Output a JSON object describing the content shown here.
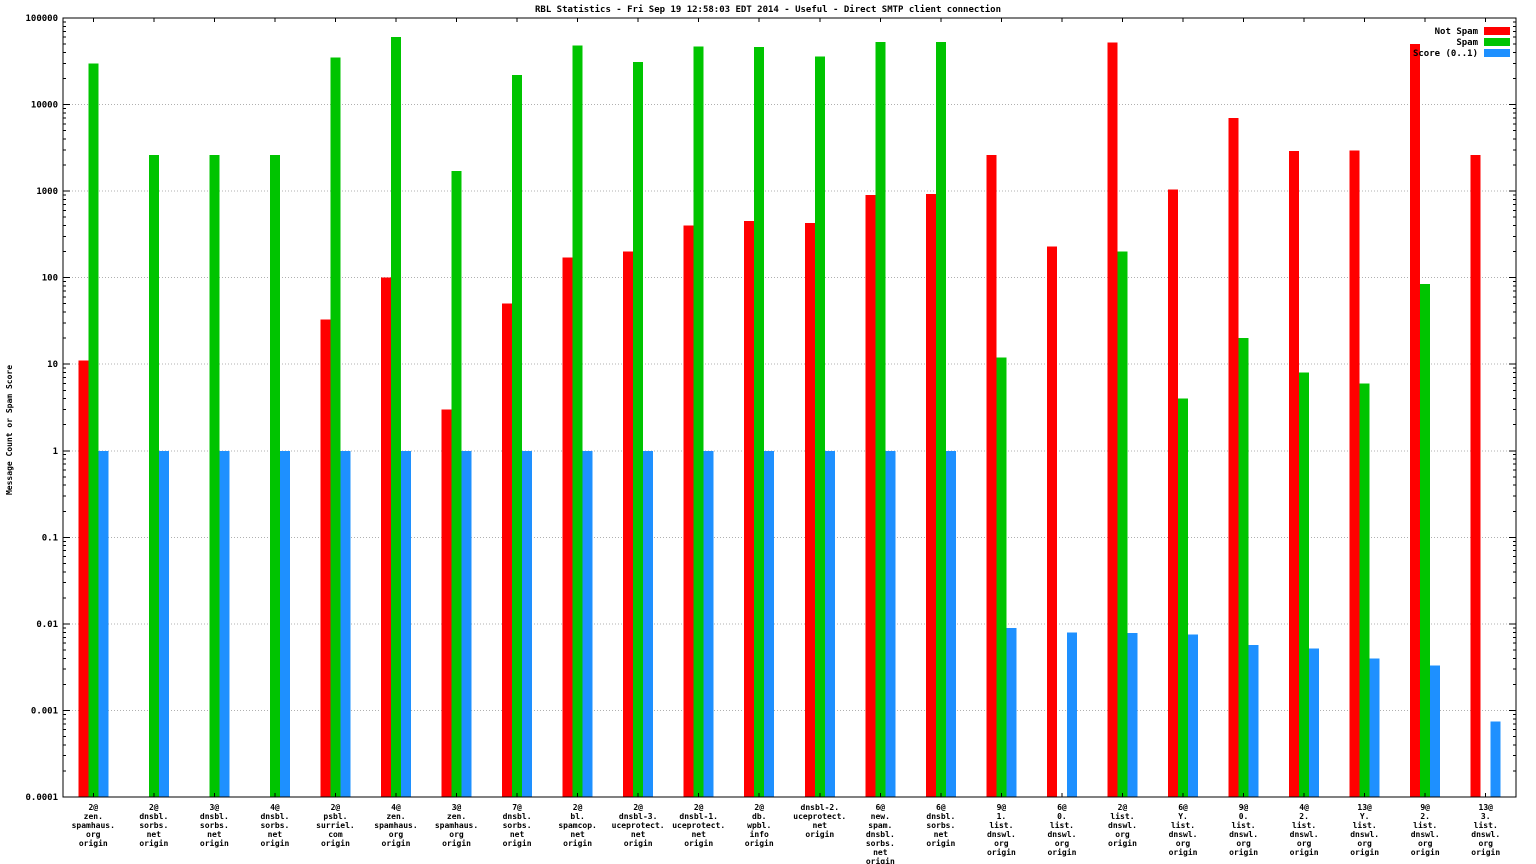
{
  "colors": {
    "not_spam": "#ff0000",
    "spam": "#00c400",
    "score": "#1e90ff",
    "grid": "#b0b0b0",
    "axis": "#000000",
    "background": "#ffffff"
  },
  "chart_data": {
    "type": "bar",
    "title": "RBL Statistics - Fri Sep 19 12:58:03 EDT 2014 - Useful - Direct SMTP client connection",
    "ylabel": "Message Count or Spam Score",
    "xlabel": "",
    "yscale": "log",
    "ylim": [
      0.0001,
      100000
    ],
    "grid": true,
    "legend_position": "top-right",
    "ytick_labels": [
      "100000",
      "10000",
      "1000",
      "100",
      "10",
      "1",
      "0.1",
      "0.01",
      "0.001",
      "0.0001"
    ],
    "categories": [
      [
        "2@",
        "zen.",
        "spamhaus.",
        "org",
        "origin"
      ],
      [
        "2@",
        "dnsbl.",
        "sorbs.",
        "net",
        "origin"
      ],
      [
        "3@",
        "dnsbl.",
        "sorbs.",
        "net",
        "origin"
      ],
      [
        "4@",
        "dnsbl.",
        "sorbs.",
        "net",
        "origin"
      ],
      [
        "2@",
        "psbl.",
        "surriel.",
        "com",
        "origin"
      ],
      [
        "4@",
        "zen.",
        "spamhaus.",
        "org",
        "origin"
      ],
      [
        "3@",
        "zen.",
        "spamhaus.",
        "org",
        "origin"
      ],
      [
        "7@",
        "dnsbl.",
        "sorbs.",
        "net",
        "origin"
      ],
      [
        "2@",
        "bl.",
        "spamcop.",
        "net",
        "origin"
      ],
      [
        "2@",
        "dnsbl-3.",
        "uceprotect.",
        "net",
        "origin"
      ],
      [
        "2@",
        "dnsbl-1.",
        "uceprotect.",
        "net",
        "origin"
      ],
      [
        "2@",
        "db.",
        "wpbl.",
        "info",
        "origin"
      ],
      [
        "dnsbl-2.",
        "uceprotect.",
        "net",
        "origin"
      ],
      [
        "6@",
        "new.",
        "spam.",
        "dnsbl.",
        "sorbs.",
        "net",
        "origin"
      ],
      [
        "6@",
        "dnsbl.",
        "sorbs.",
        "net",
        "origin"
      ],
      [
        "9@",
        "1.",
        "list.",
        "dnswl.",
        "org",
        "origin"
      ],
      [
        "6@",
        "0.",
        "list.",
        "dnswl.",
        "org",
        "origin"
      ],
      [
        "2@",
        "list.",
        "dnswl.",
        "org",
        "origin"
      ],
      [
        "6@",
        "Y.",
        "list.",
        "dnswl.",
        "org",
        "origin"
      ],
      [
        "9@",
        "0.",
        "list.",
        "dnswl.",
        "org",
        "origin"
      ],
      [
        "4@",
        "2.",
        "list.",
        "dnswl.",
        "org",
        "origin"
      ],
      [
        "13@",
        "Y.",
        "list.",
        "dnswl.",
        "org",
        "origin"
      ],
      [
        "9@",
        "2.",
        "list.",
        "dnswl.",
        "org",
        "origin"
      ],
      [
        "13@",
        "3.",
        "list.",
        "dnswl.",
        "org",
        "origin"
      ]
    ],
    "series": [
      {
        "name": "Not Spam",
        "color": "#ff0000",
        "values": [
          11,
          null,
          null,
          null,
          33,
          100,
          3,
          50,
          170,
          200,
          400,
          450,
          430,
          900,
          920,
          2600,
          230,
          52000,
          1050,
          7000,
          2900,
          2950,
          50000,
          2600
        ]
      },
      {
        "name": "Spam",
        "color": "#00c400",
        "values": [
          30000,
          2600,
          2600,
          2600,
          35000,
          60000,
          1700,
          22000,
          48000,
          31000,
          47000,
          46000,
          36000,
          53000,
          53000,
          12,
          null,
          200,
          4,
          20,
          8,
          6,
          85,
          null
        ]
      },
      {
        "name": "Score (0..1)",
        "color": "#1e90ff",
        "values": [
          1,
          1,
          1,
          1,
          1,
          1,
          1,
          1,
          1,
          1,
          1,
          1,
          1,
          1,
          1,
          0.009,
          0.008,
          0.0078,
          0.0075,
          0.0057,
          0.0052,
          0.004,
          0.0033,
          0.00075
        ]
      }
    ]
  }
}
